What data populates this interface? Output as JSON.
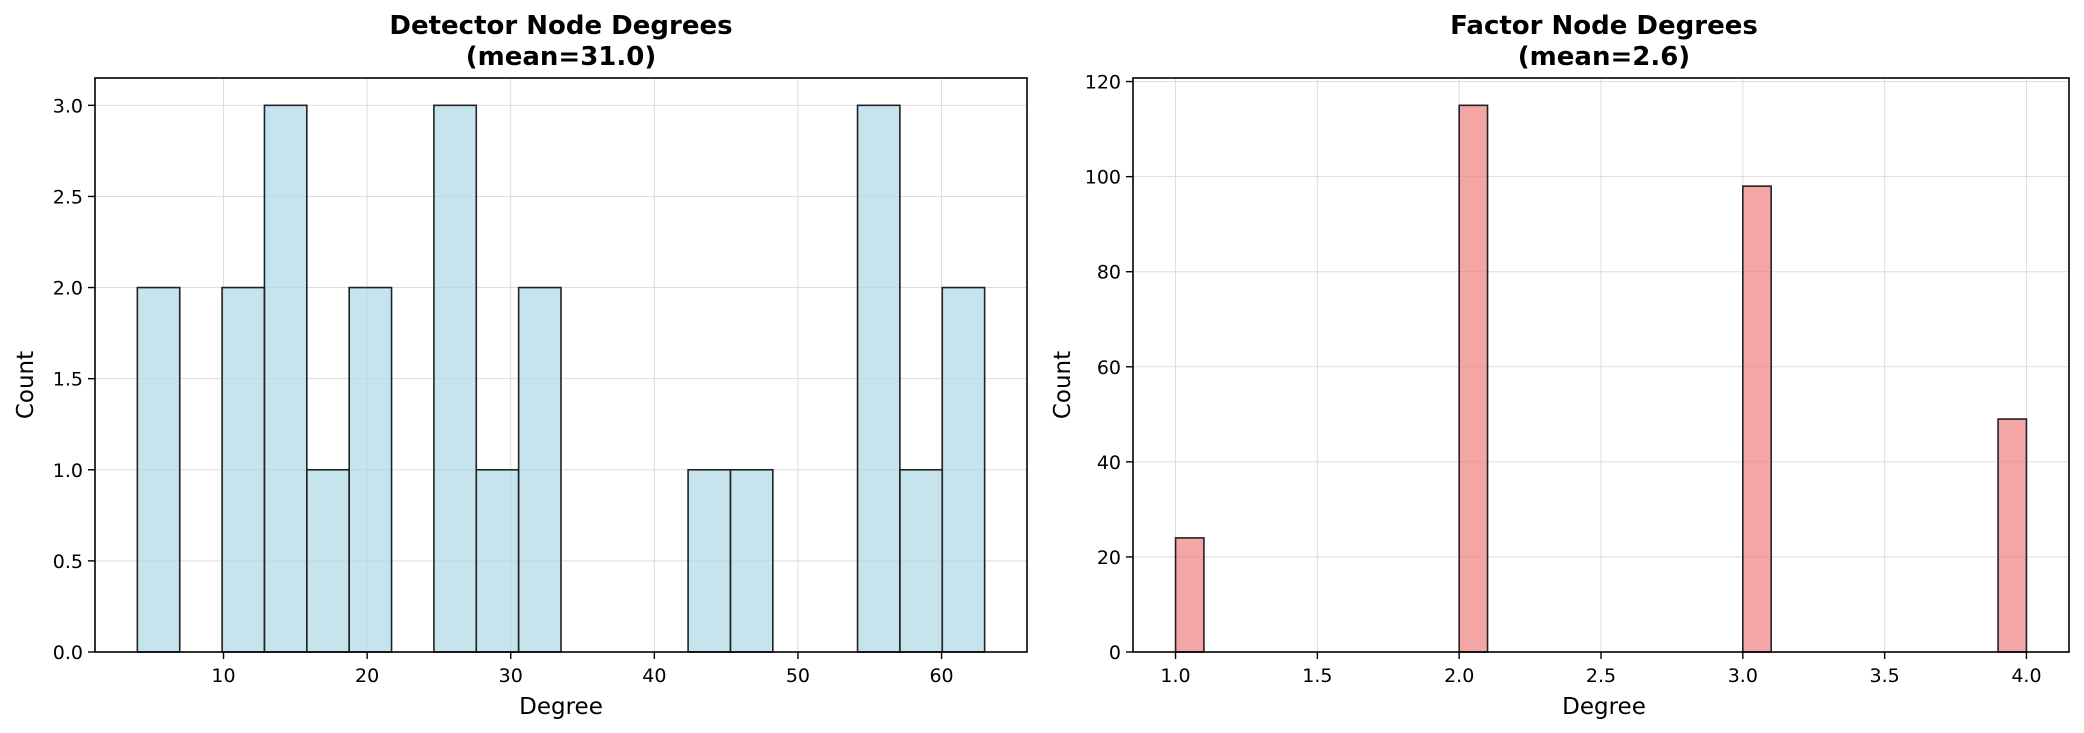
{
  "chart_data": [
    {
      "type": "bar",
      "title_line1": "Detector Node Degrees",
      "title_line2": "(mean=31.0)",
      "xlabel": "Degree",
      "ylabel": "Count",
      "color": "#add8e6",
      "xlim": [
        1.05,
        65.95
      ],
      "ylim": [
        0,
        3.15
      ],
      "xticks": [
        10,
        20,
        30,
        40,
        50,
        60
      ],
      "yticks": [
        0.0,
        0.5,
        1.0,
        1.5,
        2.0,
        2.5,
        3.0
      ],
      "bin_edges": [
        4.0,
        6.95,
        9.9,
        12.85,
        15.8,
        18.75,
        21.7,
        24.65,
        27.6,
        30.55,
        33.5,
        36.45,
        39.4,
        42.35,
        45.3,
        48.25,
        51.2,
        54.15,
        57.1,
        60.05,
        63.0
      ],
      "counts": [
        2,
        0,
        2,
        3,
        1,
        2,
        0,
        3,
        1,
        2,
        0,
        0,
        0,
        1,
        1,
        0,
        0,
        3,
        1,
        2
      ],
      "grid": true
    },
    {
      "type": "bar",
      "title_line1": "Factor Node Degrees",
      "title_line2": "(mean=2.6)",
      "xlabel": "Degree",
      "ylabel": "Count",
      "color": "#f08080",
      "xlim": [
        0.85,
        4.15
      ],
      "ylim": [
        0,
        120.75
      ],
      "xticks": [
        1.0,
        1.5,
        2.0,
        2.5,
        3.0,
        3.5,
        4.0
      ],
      "yticks": [
        0,
        20,
        40,
        60,
        80,
        100,
        120
      ],
      "bin_edges": [
        1.0,
        1.1,
        1.2,
        1.3,
        1.4,
        1.5,
        1.6,
        1.7,
        1.8,
        1.9,
        2.0,
        2.1,
        2.2,
        2.3,
        2.4,
        2.5,
        2.6,
        2.7,
        2.8,
        2.9,
        3.0,
        3.1,
        3.2,
        3.3,
        3.4,
        3.5,
        3.6,
        3.7,
        3.8,
        3.9,
        4.0
      ],
      "counts": [
        24,
        0,
        0,
        0,
        0,
        0,
        0,
        0,
        0,
        0,
        115,
        0,
        0,
        0,
        0,
        0,
        0,
        0,
        0,
        0,
        98,
        0,
        0,
        0,
        0,
        0,
        0,
        0,
        0,
        49
      ],
      "grid": true
    }
  ]
}
